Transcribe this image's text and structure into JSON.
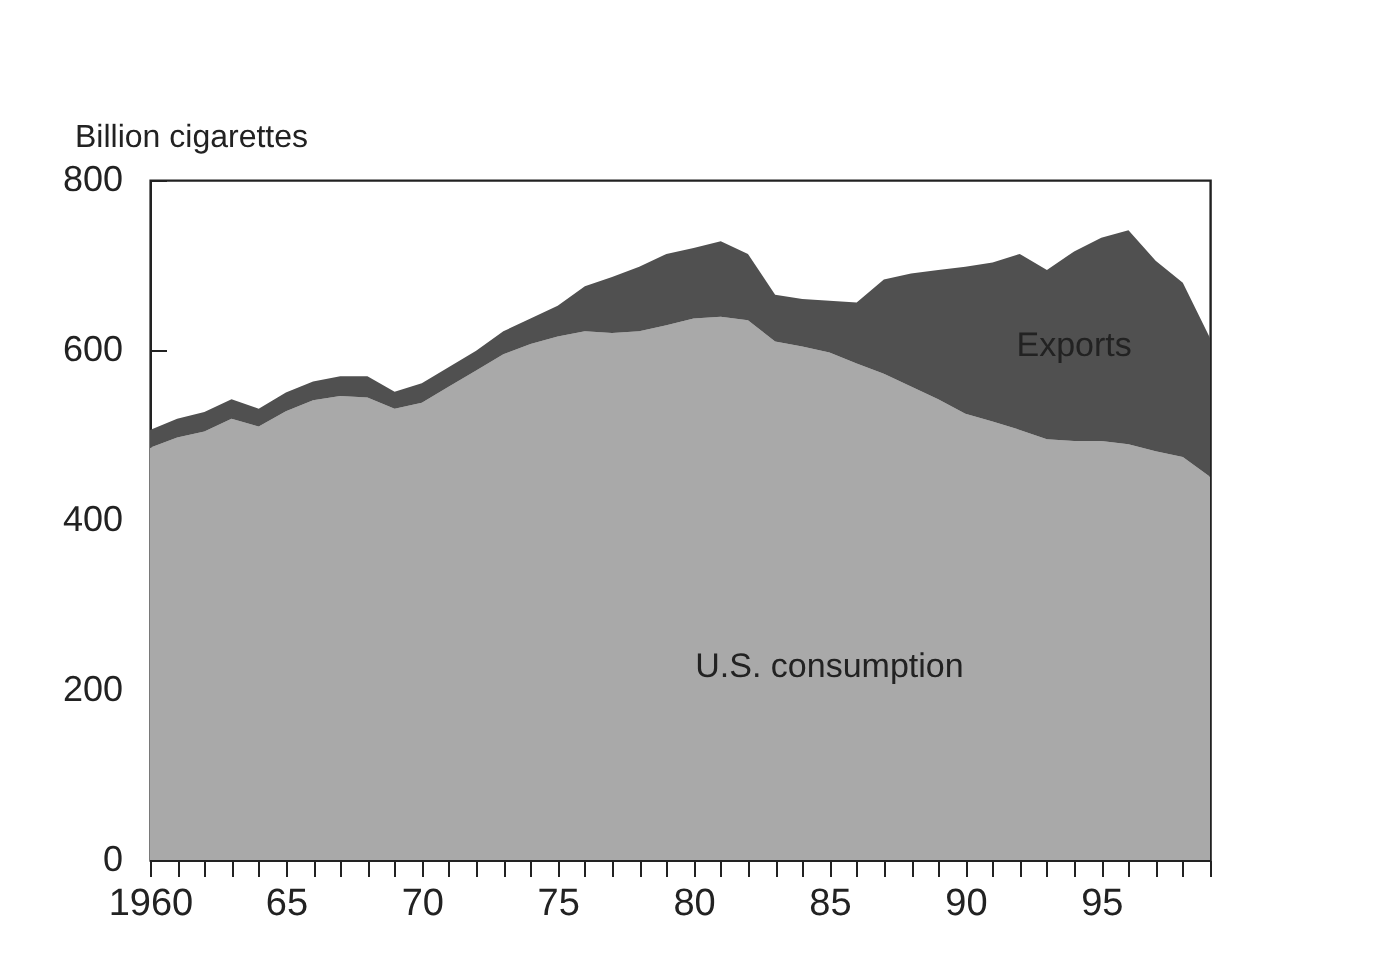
{
  "chart_data": {
    "type": "area",
    "stacked": true,
    "ylabel": "Billion cigarettes",
    "x": [
      1960,
      1961,
      1962,
      1963,
      1964,
      1965,
      1966,
      1967,
      1968,
      1969,
      1970,
      1971,
      1972,
      1973,
      1974,
      1975,
      1976,
      1977,
      1978,
      1979,
      1980,
      1981,
      1982,
      1983,
      1984,
      1985,
      1986,
      1987,
      1988,
      1989,
      1990,
      1991,
      1992,
      1993,
      1994,
      1995,
      1996,
      1997,
      1998,
      1999
    ],
    "series": [
      {
        "name": "U.S. consumption",
        "color": "#a9a9a9",
        "values": [
          485,
          497,
          504,
          519,
          510,
          528,
          541,
          546,
          544,
          531,
          538,
          557,
          576,
          595,
          607,
          616,
          622,
          620,
          622,
          629,
          637,
          639,
          635,
          610,
          604,
          597,
          584,
          572,
          557,
          542,
          525,
          516,
          506,
          495,
          493,
          493,
          489,
          481,
          474,
          451
        ]
      },
      {
        "name": "Exports",
        "color": "#505050",
        "values": [
          21,
          22,
          23,
          23,
          21,
          22,
          22,
          23,
          25,
          20,
          23,
          23,
          23,
          27,
          30,
          36,
          53,
          66,
          76,
          84,
          83,
          89,
          78,
          55,
          56,
          61,
          72,
          111,
          133,
          152,
          173,
          187,
          207,
          199,
          223,
          239,
          252,
          224,
          205,
          163
        ]
      }
    ],
    "xlim": [
      1960,
      1999
    ],
    "xticks": [
      1960,
      {
        "value": 1961,
        "label": null
      },
      {
        "value": 1962,
        "label": null
      },
      {
        "value": 1963,
        "label": null
      },
      {
        "value": 1964,
        "label": null
      },
      {
        "value": 1965,
        "label": "65"
      },
      {
        "value": 1966,
        "label": null
      },
      {
        "value": 1967,
        "label": null
      },
      {
        "value": 1968,
        "label": null
      },
      {
        "value": 1969,
        "label": null
      },
      {
        "value": 1970,
        "label": "70"
      },
      {
        "value": 1971,
        "label": null
      },
      {
        "value": 1972,
        "label": null
      },
      {
        "value": 1973,
        "label": null
      },
      {
        "value": 1974,
        "label": null
      },
      {
        "value": 1975,
        "label": "75"
      },
      {
        "value": 1976,
        "label": null
      },
      {
        "value": 1977,
        "label": null
      },
      {
        "value": 1978,
        "label": null
      },
      {
        "value": 1979,
        "label": null
      },
      {
        "value": 1980,
        "label": "80"
      },
      {
        "value": 1981,
        "label": null
      },
      {
        "value": 1982,
        "label": null
      },
      {
        "value": 1983,
        "label": null
      },
      {
        "value": 1984,
        "label": null
      },
      {
        "value": 1985,
        "label": "85"
      },
      {
        "value": 1986,
        "label": null
      },
      {
        "value": 1987,
        "label": null
      },
      {
        "value": 1988,
        "label": null
      },
      {
        "value": 1989,
        "label": null
      },
      {
        "value": 1990,
        "label": "90"
      },
      {
        "value": 1991,
        "label": null
      },
      {
        "value": 1992,
        "label": null
      },
      {
        "value": 1993,
        "label": null
      },
      {
        "value": 1994,
        "label": null
      },
      {
        "value": 1995,
        "label": "95"
      },
      {
        "value": 1996,
        "label": null
      },
      {
        "value": 1997,
        "label": null
      },
      {
        "value": 1998,
        "label": null
      },
      {
        "value": 1999,
        "label": null
      }
    ],
    "ylim": [
      0,
      800
    ],
    "yticks": [
      0,
      200,
      400,
      600,
      800
    ],
    "grid": false
  }
}
